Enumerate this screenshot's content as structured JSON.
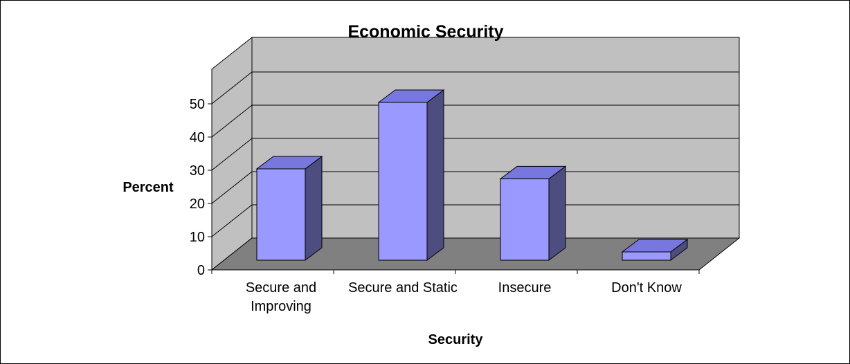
{
  "chart_data": {
    "type": "bar",
    "title": "Economic Security",
    "xlabel": "Security",
    "ylabel": "Percent",
    "categories": [
      [
        "Secure and",
        "Improving"
      ],
      [
        "Secure and Static"
      ],
      [
        "Insecure"
      ],
      [
        "Don't Know"
      ]
    ],
    "values": [
      27.5,
      47.5,
      24.5,
      2.5
    ],
    "ylim": [
      0,
      50
    ],
    "yticks": [
      "0",
      "10",
      "20",
      "30",
      "40",
      "50"
    ],
    "grid": true,
    "legend": "none",
    "colors": {
      "bar_front": "#9999ff",
      "bar_side": "#4d4d80",
      "bar_top": "#7777dd",
      "back_wall": "#c0c0c0",
      "side_wall": "#c0c0c0",
      "floor": "#808080"
    }
  }
}
